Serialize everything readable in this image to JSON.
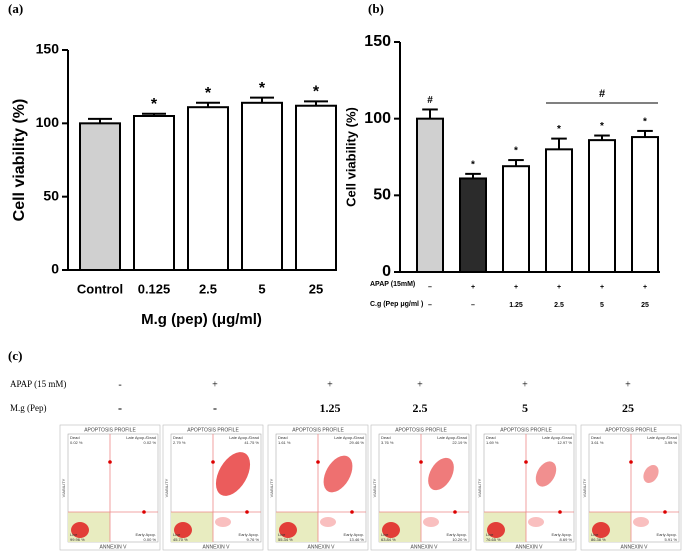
{
  "chart_data": [
    {
      "type": "bar",
      "panel_label": "(a)",
      "y_label": "Cell viability (%)",
      "x_label": "M.g (pep) (μg/ml)",
      "categories": [
        "Control",
        "0.125",
        "2.5",
        "5",
        "25"
      ],
      "values": [
        100,
        105,
        111,
        114,
        112
      ],
      "errors": [
        3,
        1.5,
        3,
        3.5,
        3
      ],
      "colors": [
        "#d0d0d0",
        "#ffffff",
        "#ffffff",
        "#ffffff",
        "#ffffff"
      ],
      "annotations": [
        null,
        "*",
        "*",
        "*",
        "*"
      ],
      "ylim": [
        0,
        150
      ],
      "yticks": [
        0,
        50,
        100,
        150
      ],
      "grid": false
    },
    {
      "type": "bar",
      "panel_label": "(b)",
      "y_label": "Cell viability (%)",
      "categories": [
        null,
        null,
        null,
        null,
        null,
        null
      ],
      "values": [
        100,
        61,
        69,
        80,
        86,
        88
      ],
      "errors": [
        6,
        3,
        4,
        7,
        3,
        4
      ],
      "colors": [
        "#d0d0d0",
        "#2b2b2b",
        "#ffffff",
        "#ffffff",
        "#ffffff",
        "#ffffff"
      ],
      "annotations": [
        "#",
        "*",
        "*",
        "*",
        "*",
        "*"
      ],
      "bracket_label": "#",
      "conditions": [
        {
          "label": "APAP (15mM)",
          "values": [
            "–",
            "+",
            "+",
            "+",
            "+",
            "+"
          ]
        },
        {
          "label": "C.g (Pep μg/ml )",
          "values": [
            "–",
            "–",
            "1.25",
            "2.5",
            "5",
            "25"
          ]
        }
      ],
      "ylim": [
        0,
        150
      ],
      "yticks": [
        0,
        50,
        100,
        150
      ],
      "grid": false
    }
  ],
  "panel_c": {
    "label": "(c)",
    "rows": [
      {
        "label": "APAP (15 mM)",
        "values": [
          "-",
          "+",
          "+",
          "+",
          "+",
          "+"
        ]
      },
      {
        "label": "M.g (Pep)",
        "values": [
          "-",
          "-",
          "1.25",
          "2.5",
          "5",
          "25"
        ]
      }
    ],
    "plots": [
      {
        "title": "APOPTOSIS PROFILE",
        "x_label": "ANNEXIN V",
        "y_label": "VIABILITY",
        "quadrants": [
          {
            "name": "Dead",
            "value": "0.02 %"
          },
          {
            "name": "Late Apop./Dead",
            "value": "0.02 %"
          },
          {
            "name": "Live",
            "value": "99.96 %"
          },
          {
            "name": "Early Apop.",
            "value": "0.00 %"
          }
        ]
      },
      {
        "title": "APOPTOSIS PROFILE",
        "x_label": "ANNEXIN V",
        "y_label": "VIABILITY",
        "quadrants": [
          {
            "name": "Dead",
            "value": "2.79 %"
          },
          {
            "name": "Late Apop./Dead",
            "value": "41.75 %"
          },
          {
            "name": "Live",
            "value": "45.70 %"
          },
          {
            "name": "Early Apop.",
            "value": "9.76 %"
          }
        ]
      },
      {
        "title": "APOPTOSIS PROFILE",
        "x_label": "ANNEXIN V",
        "y_label": "VIABILITY",
        "quadrants": [
          {
            "name": "Dead",
            "value": "1.61 %"
          },
          {
            "name": "Late Apop./Dead",
            "value": "29.46 %"
          },
          {
            "name": "Live",
            "value": "55.34 %"
          },
          {
            "name": "Early Apop.",
            "value": "13.46 %"
          }
        ]
      },
      {
        "title": "APOPTOSIS PROFILE",
        "x_label": "ANNEXIN V",
        "y_label": "VIABILITY",
        "quadrants": [
          {
            "name": "Dead",
            "value": "3.76 %"
          },
          {
            "name": "Late Apop./Dead",
            "value": "22.19 %"
          },
          {
            "name": "Live",
            "value": "63.84 %"
          },
          {
            "name": "Early Apop.",
            "value": "10.20 %"
          }
        ]
      },
      {
        "title": "APOPTOSIS PROFILE",
        "x_label": "ANNEXIN V",
        "y_label": "VIABILITY",
        "quadrants": [
          {
            "name": "Dead",
            "value": "1.69 %"
          },
          {
            "name": "Late Apop./Dead",
            "value": "12.97 %"
          },
          {
            "name": "Live",
            "value": "76.65 %"
          },
          {
            "name": "Early Apop.",
            "value": "8.69 %"
          }
        ]
      },
      {
        "title": "APOPTOSIS PROFILE",
        "x_label": "ANNEXIN V",
        "y_label": "VIABILITY",
        "quadrants": [
          {
            "name": "Dead",
            "value": "3.61 %"
          },
          {
            "name": "Late Apop./Dead",
            "value": "3.95 %"
          },
          {
            "name": "Live",
            "value": "86.38 %"
          },
          {
            "name": "Early Apop.",
            "value": "5.91 %"
          }
        ]
      }
    ]
  }
}
